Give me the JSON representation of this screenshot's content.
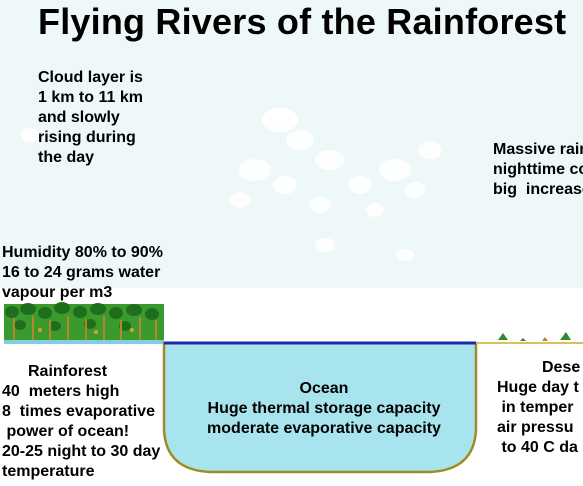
{
  "title": "Flying Rivers of the Rainforest",
  "cloud_note": [
    "Cloud layer is",
    "1 km to 11 km",
    "and slowly",
    "rising during",
    "the day"
  ],
  "rain_note": [
    "Massive rain",
    "nighttime co",
    "big  increase"
  ],
  "humidity_note": [
    "Humidity 80% to 90%",
    "16 to 24 grams water",
    "vapour per m3"
  ],
  "rainforest_note": [
    "Rainforest",
    "40  meters high",
    "8  times evaporative",
    " power of ocean!",
    "20-25 night to 30 day",
    "temperature"
  ],
  "ocean_note": [
    "Ocean",
    "Huge thermal storage capacity",
    "moderate evaporative capacity"
  ],
  "desert_note": [
    "Dese",
    "Huge day t",
    " in temper",
    "air pressu",
    " to 40 C da"
  ],
  "colors": {
    "sky": "#eef8f8",
    "ocean": "#a8e4ee",
    "ocean_edge": "#a08a22",
    "water_surface": "#1c2aa8",
    "forest_green": "#2f8a2a",
    "tree_trunk": "#b8862a"
  }
}
